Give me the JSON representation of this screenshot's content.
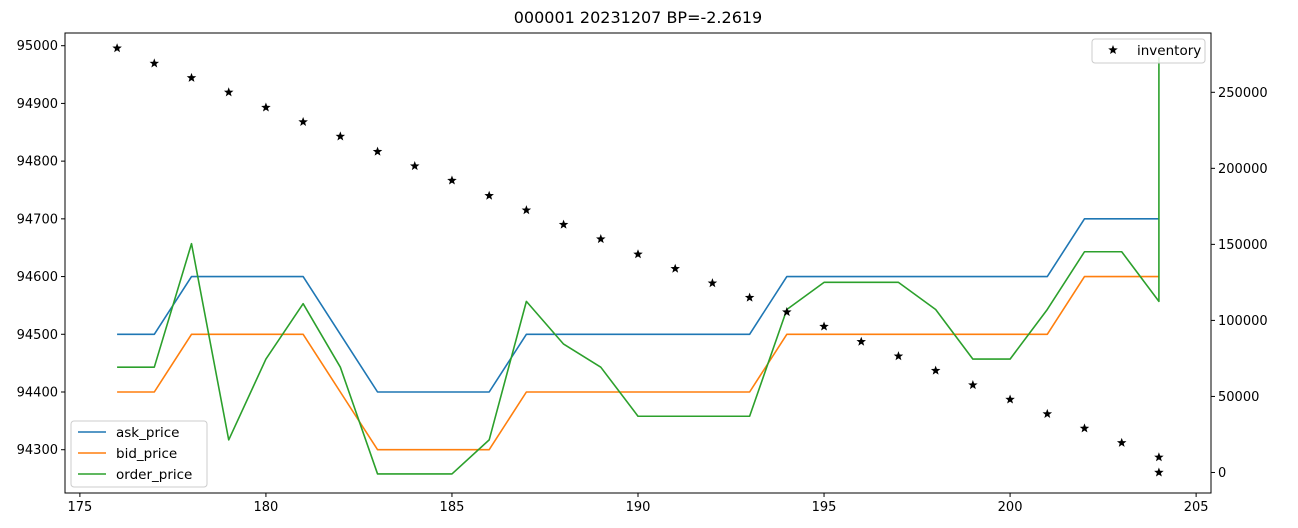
{
  "chart_data": {
    "type": "line",
    "title": "000001 20231207 BP=-2.2619",
    "xlabel": "",
    "ylabel": "",
    "y2label": "",
    "xlim": [
      174.6,
      205.4
    ],
    "ylim": [
      94225,
      95022
    ],
    "y2lim": [
      -13500,
      289000
    ],
    "xticks": [
      175,
      180,
      185,
      190,
      195,
      200,
      205
    ],
    "yticks": [
      94300,
      94400,
      94500,
      94600,
      94700,
      94800,
      94900,
      95000
    ],
    "y2ticks": [
      0,
      50000,
      100000,
      150000,
      200000,
      250000
    ],
    "grid": false,
    "x": [
      176,
      177,
      178,
      179,
      180,
      181,
      182,
      183,
      184,
      185,
      186,
      187,
      188,
      189,
      190,
      191,
      192,
      193,
      194,
      195,
      196,
      197,
      198,
      199,
      200,
      201,
      202,
      203,
      204
    ],
    "series": [
      {
        "name": "ask_price",
        "axis": "left",
        "color": "#1f77b4",
        "x": [
          176,
          177,
          178,
          179,
          180,
          181,
          182,
          183,
          184,
          185,
          186,
          187,
          188,
          189,
          190,
          191,
          192,
          193,
          194,
          195,
          196,
          197,
          198,
          199,
          200,
          201,
          202,
          203,
          204
        ],
        "values": [
          94500,
          94500,
          94600,
          94600,
          94600,
          94600,
          94500,
          94400,
          94400,
          94400,
          94400,
          94500,
          94500,
          94500,
          94500,
          94500,
          94500,
          94500,
          94600,
          94600,
          94600,
          94600,
          94600,
          94600,
          94600,
          94600,
          94700,
          94700,
          94700
        ]
      },
      {
        "name": "bid_price",
        "axis": "left",
        "color": "#ff7f0e",
        "x": [
          176,
          177,
          178,
          179,
          180,
          181,
          182,
          183,
          184,
          185,
          186,
          187,
          188,
          189,
          190,
          191,
          192,
          193,
          194,
          195,
          196,
          197,
          198,
          199,
          200,
          201,
          202,
          203,
          204
        ],
        "values": [
          94400,
          94400,
          94500,
          94500,
          94500,
          94500,
          94400,
          94300,
          94300,
          94300,
          94300,
          94400,
          94400,
          94400,
          94400,
          94400,
          94400,
          94400,
          94500,
          94500,
          94500,
          94500,
          94500,
          94500,
          94500,
          94500,
          94600,
          94600,
          94600
        ]
      },
      {
        "name": "order_price",
        "axis": "left",
        "color": "#2ca02c",
        "x": [
          176,
          177,
          178,
          179,
          180,
          181,
          182,
          183,
          184,
          185,
          186,
          187,
          188,
          189,
          190,
          191,
          192,
          193,
          194,
          195,
          196,
          197,
          198,
          199,
          200,
          201,
          202,
          203,
          204,
          204
        ],
        "values": [
          94443,
          94443,
          94657,
          94317,
          94457,
          94553,
          94443,
          94258,
          94258,
          94258,
          94317,
          94557,
          94483,
          94443,
          94358,
          94358,
          94358,
          94358,
          94543,
          94590,
          94590,
          94590,
          94543,
          94457,
          94457,
          94543,
          94643,
          94643,
          94557,
          94980
        ]
      },
      {
        "name": "inventory",
        "axis": "right",
        "marker": "star",
        "color": "#000000",
        "x": [
          176,
          177,
          178,
          179,
          180,
          181,
          182,
          183,
          184,
          185,
          186,
          187,
          188,
          189,
          190,
          191,
          192,
          193,
          194,
          195,
          196,
          197,
          198,
          199,
          200,
          201,
          202,
          203,
          204,
          204
        ],
        "values": [
          279000,
          269000,
          259500,
          250000,
          240000,
          230500,
          221000,
          211000,
          201500,
          192000,
          182000,
          172500,
          163000,
          153500,
          143500,
          134000,
          124500,
          115000,
          105500,
          96000,
          86000,
          76500,
          67000,
          57500,
          48000,
          38500,
          29000,
          19500,
          10000,
          0
        ]
      }
    ],
    "legends": [
      {
        "placement": "lower-left",
        "entries": [
          "ask_price",
          "bid_price",
          "order_price"
        ]
      },
      {
        "placement": "upper-right",
        "entries": [
          "inventory"
        ]
      }
    ]
  }
}
